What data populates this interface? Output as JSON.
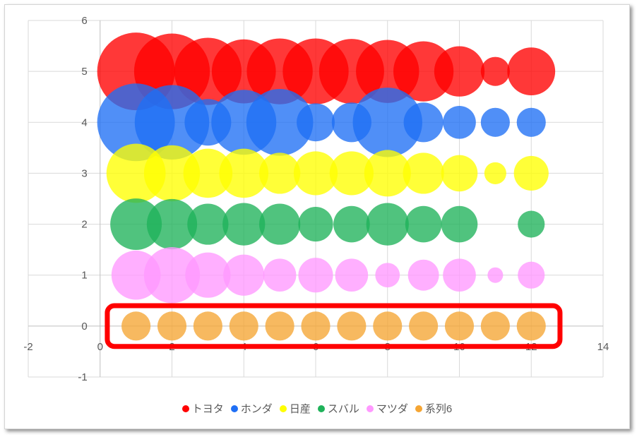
{
  "chart_data": {
    "type": "bubble",
    "title": "",
    "xlabel": "",
    "ylabel": "",
    "xlim": [
      -2,
      14
    ],
    "ylim": [
      -1,
      6
    ],
    "xticks": [
      -2,
      0,
      2,
      4,
      6,
      8,
      10,
      12,
      14
    ],
    "yticks": [
      -1,
      0,
      1,
      2,
      3,
      4,
      5,
      6
    ],
    "grid": true,
    "legend_position": "bottom",
    "x": [
      1,
      2,
      3,
      4,
      5,
      6,
      7,
      8,
      9,
      10,
      11,
      12
    ],
    "series": [
      {
        "name": "トヨタ",
        "color": "#ff0000",
        "y": 5,
        "sizes": [
          100,
          95,
          75,
          68,
          72,
          72,
          70,
          66,
          60,
          42,
          14,
          38
        ]
      },
      {
        "name": "ホンダ",
        "color": "#1f6ff5",
        "y": 4,
        "sizes": [
          100,
          92,
          36,
          70,
          74,
          24,
          26,
          80,
          26,
          18,
          14,
          14
        ]
      },
      {
        "name": "日産",
        "color": "#ffff00",
        "y": 3,
        "sizes": [
          58,
          52,
          40,
          40,
          28,
          32,
          32,
          36,
          28,
          22,
          8,
          20
        ]
      },
      {
        "name": "スバル",
        "color": "#1fb25a",
        "y": 2,
        "sizes": [
          44,
          42,
          28,
          30,
          28,
          20,
          22,
          30,
          22,
          22,
          0,
          12
        ]
      },
      {
        "name": "マツダ",
        "color": "#ff99ff",
        "y": 1,
        "sizes": [
          40,
          52,
          34,
          28,
          18,
          20,
          18,
          10,
          16,
          18,
          4,
          12
        ]
      },
      {
        "name": "系列6",
        "color": "#f5a533",
        "y": 0,
        "sizes": [
          14,
          14,
          14,
          14,
          14,
          14,
          14,
          14,
          14,
          14,
          14,
          14
        ]
      }
    ],
    "annotation": {
      "shape": "rounded-rectangle",
      "color": "#ff0000",
      "x_range": [
        0.2,
        12.8
      ],
      "y_range": [
        -0.4,
        0.4
      ]
    }
  }
}
